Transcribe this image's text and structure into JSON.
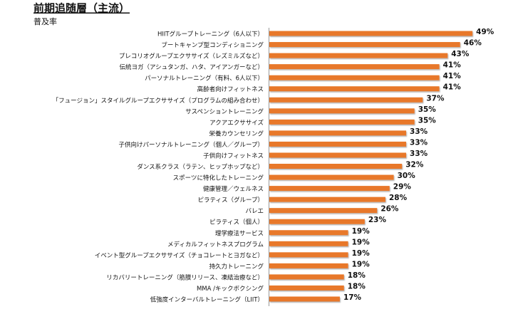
{
  "chart_data": {
    "type": "bar",
    "orientation": "horizontal",
    "title": "前期追随層（主流）",
    "subtitle": "普及率",
    "color": "#e8782a",
    "categories": [
      "HIITグループトレーニング（6人以下）",
      "ブートキャンプ型コンディショニング",
      "プレコリオグループエクササイズ（レズミルズなど）",
      "伝統ヨガ（アシュタンガ、ハタ、アイアンガーなど）",
      "パーソナルトレーニング（有料、6人以下）",
      "高齢者向けフィットネス",
      "「フュージョン」スタイルグループエクササイズ（プログラムの組み合わせ）",
      "サスペンショントレーニング",
      "アクアエクササイズ",
      "栄養カウンセリング",
      "子供向けパーソナルトレーニング（個人／グループ）",
      "子供向けフィットネス",
      "ダンス系クラス（ラテン、ヒップホップなど）",
      "スポーツに特化したトレーニング",
      "健康管理／ウェルネス",
      "ピラティス（グループ）",
      "バレエ",
      "ピラティス（個人）",
      "理学療法サービス",
      "メディカルフィットネスプログラム",
      "イベント型グループエクササイズ（チョコレートとヨガなど）",
      "持久力トレーニング",
      "リカバリートレーニング（筋膜リリース、凍結治療など）",
      "MMA /キックボクシング",
      "低強度インターバルトレーニング（LIIT）"
    ],
    "values": [
      49,
      46,
      43,
      41,
      41,
      41,
      37,
      35,
      35,
      33,
      33,
      33,
      32,
      30,
      29,
      28,
      26,
      23,
      19,
      19,
      19,
      19,
      18,
      18,
      17
    ],
    "value_labels": [
      "49%",
      "46%",
      "43%",
      "41%",
      "41%",
      "41%",
      "37%",
      "35%",
      "35%",
      "33%",
      "33%",
      "33%",
      "32%",
      "30%",
      "29%",
      "28%",
      "26%",
      "23%",
      "19%",
      "19%",
      "19%",
      "19%",
      "18%",
      "18%",
      "17%"
    ]
  }
}
